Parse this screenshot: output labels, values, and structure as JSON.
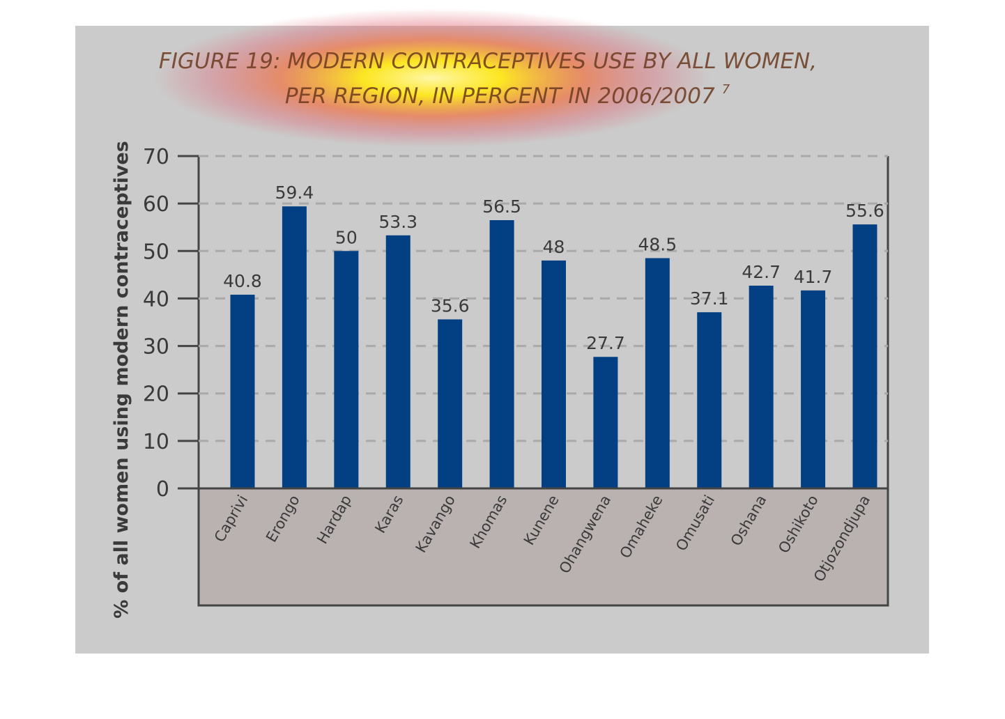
{
  "chart_data": {
    "type": "bar",
    "title_line1": "FIGURE 19: MODERN CONTRACEPTIVES USE BY ALL WOMEN,",
    "title_line2": "PER REGION, IN PERCENT IN 2006/2007",
    "title_superscript": "7",
    "xlabel": "",
    "ylabel": "% of all women using modern contraceptives",
    "ylim": [
      0,
      70
    ],
    "yticks": [
      "0",
      "10",
      "20",
      "30",
      "40",
      "50",
      "60",
      "70"
    ],
    "grid": true,
    "categories": [
      "Caprivi",
      "Erongo",
      "Hardap",
      "Karas",
      "Kavango",
      "Khomas",
      "Kunene",
      "Ohangwena",
      "Omaheke",
      "Omusati",
      "Oshana",
      "Oshikoto",
      "Otjozondjupa"
    ],
    "values": [
      40.8,
      59.4,
      50,
      53.3,
      35.6,
      56.5,
      48,
      27.7,
      48.5,
      37.1,
      42.7,
      41.7,
      55.6
    ],
    "value_labels": [
      "40.8",
      "59.4",
      "50",
      "53.3",
      "35.6",
      "56.5",
      "48",
      "27.7",
      "48.5",
      "37.1",
      "42.7",
      "41.7",
      "55.6"
    ]
  },
  "colors": {
    "panel_background": "#cbcbcb",
    "category_band": "#bab2b1",
    "bar": "#033f83",
    "title_text": "#6b3a1e",
    "axis_text": "#3a3a3a",
    "gridline": "#a9a9a9",
    "axis_line": "#444444",
    "highlight_glow": "#fff200"
  }
}
